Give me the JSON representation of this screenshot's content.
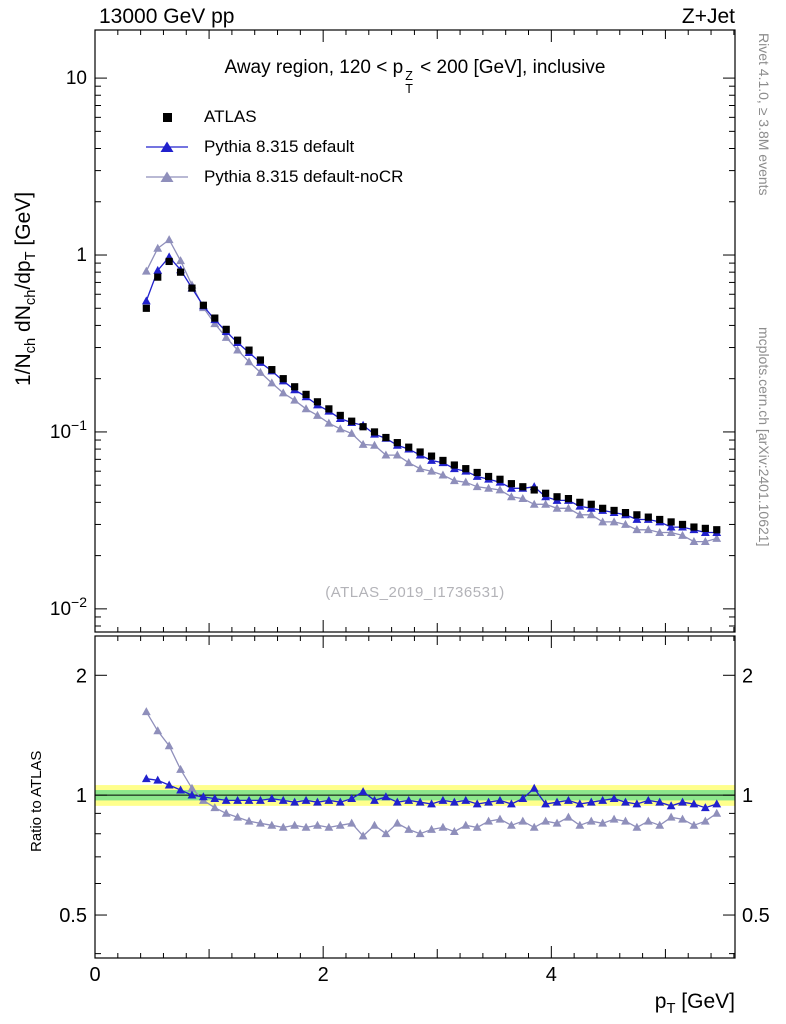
{
  "header": {
    "left": "13000 GeV pp",
    "right": "Z+Jet"
  },
  "title": {
    "pre": "Away region, 120 < p",
    "sup": "Z",
    "sub": "T",
    "post": " < 200 [GeV], inclusive"
  },
  "side_notes": {
    "top": "Rivet 4.1.0, ≥ 3.8M events",
    "bottom": "mcplots.cern.ch [arXiv:2401.10621]"
  },
  "watermark": "(ATLAS_2019_I1736531)",
  "axes": {
    "y_top_label": {
      "p1": "1/N",
      "s1": "ch",
      "p2": " dN",
      "s2": "ch",
      "p3": "/dp",
      "s3": "T",
      "p4": " [GeV]"
    },
    "ratio_label": "Ratio to ATLAS",
    "x_label": {
      "p1": "p",
      "s1": "T",
      "p2": " [GeV]"
    }
  },
  "legend": [
    {
      "label": "ATLAS",
      "marker": "square",
      "color": "#000000",
      "line": false
    },
    {
      "label": "Pythia 8.315 default",
      "marker": "triangle",
      "color": "#2121cd",
      "line": true
    },
    {
      "label": "Pythia 8.315 default-noCR",
      "marker": "triangle",
      "color": "#8f8fbb",
      "line": true
    }
  ],
  "chart_data": {
    "type": "line",
    "title": "Away region, 120 < pTZ < 200 [GeV], inclusive",
    "xlabel": "pT [GeV]",
    "ylabel": "1/Nch dNch/dpT [GeV]",
    "ratio_ylabel": "Ratio to ATLAS",
    "legend_position": "top-left",
    "xlim": [
      0,
      5.61
    ],
    "xticks": [
      {
        "v": 0,
        "label": "0"
      },
      {
        "v": 2,
        "label": "2"
      },
      {
        "v": 4,
        "label": "4"
      }
    ],
    "x": [
      0.45,
      0.55,
      0.65,
      0.75,
      0.85,
      0.95,
      1.05,
      1.15,
      1.25,
      1.35,
      1.45,
      1.55,
      1.65,
      1.75,
      1.85,
      1.95,
      2.05,
      2.15,
      2.25,
      2.35,
      2.45,
      2.55,
      2.65,
      2.75,
      2.85,
      2.95,
      3.05,
      3.15,
      3.25,
      3.35,
      3.45,
      3.55,
      3.65,
      3.75,
      3.85,
      3.95,
      4.05,
      4.15,
      4.25,
      4.35,
      4.45,
      4.55,
      4.65,
      4.75,
      4.85,
      4.95,
      5.05,
      5.15,
      5.25,
      5.35,
      5.45
    ],
    "series": [
      {
        "name": "ATLAS",
        "color": "#000000",
        "marker": "square",
        "line": false,
        "values": [
          0.5,
          0.75,
          0.92,
          0.8,
          0.65,
          0.52,
          0.44,
          0.38,
          0.33,
          0.29,
          0.255,
          0.225,
          0.2,
          0.18,
          0.163,
          0.148,
          0.135,
          0.124,
          0.115,
          0.107,
          0.1,
          0.093,
          0.087,
          0.082,
          0.077,
          0.073,
          0.069,
          0.065,
          0.062,
          0.059,
          0.056,
          0.054,
          0.051,
          0.049,
          0.047,
          0.045,
          0.043,
          0.042,
          0.04,
          0.039,
          0.037,
          0.036,
          0.035,
          0.034,
          0.033,
          0.032,
          0.031,
          0.03,
          0.029,
          0.0285,
          0.028
        ]
      },
      {
        "name": "Pythia 8.315 default",
        "color": "#2121cd",
        "marker": "triangle",
        "line": true,
        "values": [
          0.55,
          0.818,
          0.975,
          0.824,
          0.65,
          0.515,
          0.431,
          0.369,
          0.32,
          0.281,
          0.247,
          0.221,
          0.194,
          0.173,
          0.158,
          0.142,
          0.131,
          0.119,
          0.113,
          0.109,
          0.097,
          0.092,
          0.084,
          0.08,
          0.074,
          0.069,
          0.067,
          0.062,
          0.06,
          0.056,
          0.054,
          0.052,
          0.048,
          0.048,
          0.049,
          0.043,
          0.041,
          0.041,
          0.038,
          0.037,
          0.036,
          0.035,
          0.034,
          0.032,
          0.032,
          0.031,
          0.029,
          0.029,
          0.028,
          0.027,
          0.027
        ],
        "ratio_to_atlas": [
          1.1,
          1.09,
          1.06,
          1.03,
          1.0,
          0.99,
          0.98,
          0.97,
          0.97,
          0.97,
          0.97,
          0.98,
          0.97,
          0.96,
          0.97,
          0.96,
          0.97,
          0.96,
          0.98,
          1.02,
          0.97,
          0.99,
          0.96,
          0.97,
          0.96,
          0.95,
          0.97,
          0.96,
          0.97,
          0.95,
          0.96,
          0.97,
          0.95,
          0.98,
          1.04,
          0.95,
          0.96,
          0.97,
          0.95,
          0.96,
          0.97,
          0.98,
          0.96,
          0.95,
          0.97,
          0.96,
          0.94,
          0.96,
          0.95,
          0.93,
          0.95
        ]
      },
      {
        "name": "Pythia 8.315 default-noCR",
        "color": "#8f8fbb",
        "marker": "triangle",
        "line": true,
        "values": [
          0.81,
          1.09,
          1.22,
          0.928,
          0.676,
          0.504,
          0.409,
          0.342,
          0.29,
          0.249,
          0.217,
          0.189,
          0.166,
          0.151,
          0.135,
          0.124,
          0.112,
          0.104,
          0.098,
          0.085,
          0.084,
          0.074,
          0.074,
          0.067,
          0.062,
          0.06,
          0.057,
          0.053,
          0.052,
          0.049,
          0.048,
          0.047,
          0.043,
          0.042,
          0.039,
          0.039,
          0.037,
          0.037,
          0.034,
          0.034,
          0.031,
          0.031,
          0.03,
          0.028,
          0.028,
          0.027,
          0.027,
          0.026,
          0.024,
          0.024,
          0.025
        ],
        "ratio_to_atlas": [
          1.62,
          1.45,
          1.33,
          1.16,
          1.04,
          0.97,
          0.93,
          0.9,
          0.88,
          0.86,
          0.85,
          0.84,
          0.83,
          0.84,
          0.83,
          0.84,
          0.83,
          0.84,
          0.85,
          0.79,
          0.84,
          0.8,
          0.85,
          0.82,
          0.8,
          0.82,
          0.83,
          0.81,
          0.84,
          0.83,
          0.86,
          0.87,
          0.84,
          0.86,
          0.83,
          0.86,
          0.85,
          0.88,
          0.84,
          0.86,
          0.85,
          0.87,
          0.86,
          0.83,
          0.86,
          0.84,
          0.88,
          0.87,
          0.84,
          0.86,
          0.9
        ]
      }
    ],
    "top_panel": {
      "ylog": true,
      "ylim": [
        0.0074,
        18.7
      ],
      "yticks": [
        {
          "v": 10,
          "base": "10"
        },
        {
          "v": 1,
          "base": "1"
        },
        {
          "v": 0.1,
          "base": "10",
          "exp": "−1"
        },
        {
          "v": 0.01,
          "base": "10",
          "exp": "−2"
        }
      ]
    },
    "ratio_panel": {
      "ylog": true,
      "ylim": [
        0.39,
        2.51
      ],
      "ref_line": 1,
      "yticks": [
        {
          "v": 2,
          "label": "2"
        },
        {
          "v": 1,
          "label": "1"
        },
        {
          "v": 0.5,
          "label": "0.5"
        }
      ],
      "minor_ticks": [
        0.4,
        0.6,
        0.7,
        0.8,
        0.9
      ],
      "bands": {
        "yellow": {
          "lo": 0.94,
          "hi": 1.06,
          "color": "#ffff8c"
        },
        "green": {
          "lo": 0.97,
          "hi": 1.03,
          "color": "#8ce68c"
        }
      }
    }
  }
}
